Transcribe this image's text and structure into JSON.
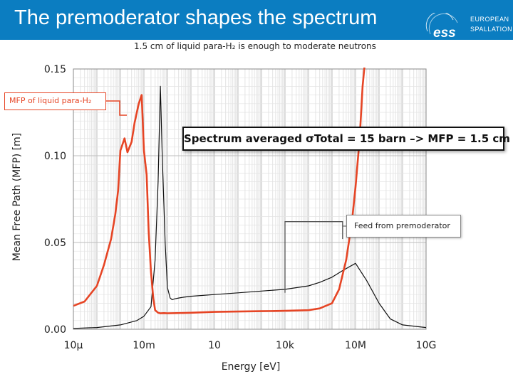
{
  "slide": {
    "title": "The premoderator shapes the spectrum",
    "subtitle": "1.5 cm of liquid para-H₂ is enough to moderate neutrons",
    "logo_text": [
      "EUROPEAN",
      "SPALLATION"
    ],
    "header_color": "#0b7dc1"
  },
  "annotations": {
    "mfp_label": "MFP of liquid para-H₂",
    "spectrum_note": "Spectrum averaged σTotal = 15 barn –> MFP = 1.5 cm",
    "feed_label": "Feed from premoderator"
  },
  "chart_data": {
    "type": "line",
    "title": "",
    "xlabel": "Energy [eV]",
    "ylabel": "Mean Free Path (MFP) [m]",
    "x_scale": "log",
    "xlim": [
      1e-05,
      10000000000.0
    ],
    "ylim": [
      0,
      0.15
    ],
    "x_tick_labels": [
      "10μ",
      "10m",
      "10",
      "10k",
      "10M",
      "10G"
    ],
    "y_tick_labels": [
      "0.00",
      "0.05",
      "0.10",
      "0.15"
    ],
    "grid": true,
    "series": [
      {
        "name": "MFP of liquid para-H₂",
        "color": "#e64525",
        "x": [
          1e-05,
          3e-05,
          0.0001,
          0.0002,
          0.0004,
          0.0006,
          0.0008,
          0.001,
          0.0015,
          0.002,
          0.003,
          0.004,
          0.006,
          0.008,
          0.01,
          0.013,
          0.016,
          0.02,
          0.025,
          0.03,
          0.04,
          0.05,
          0.07,
          0.1,
          1,
          10,
          100,
          1000,
          10000.0,
          100000.0,
          300000.0,
          1000000.0,
          2000000.0,
          4000000.0,
          7000000.0,
          10000000.0,
          15000000.0,
          20000000.0,
          30000000.0,
          40000000.0
        ],
        "y": [
          0.0135,
          0.016,
          0.025,
          0.037,
          0.052,
          0.066,
          0.08,
          0.103,
          0.11,
          0.102,
          0.108,
          0.119,
          0.13,
          0.135,
          0.103,
          0.089,
          0.056,
          0.033,
          0.018,
          0.011,
          0.0095,
          0.0092,
          0.0093,
          0.0092,
          0.0095,
          0.01,
          0.0102,
          0.0104,
          0.0106,
          0.011,
          0.012,
          0.015,
          0.023,
          0.04,
          0.062,
          0.082,
          0.11,
          0.14,
          0.165,
          0.2
        ]
      },
      {
        "name": "",
        "color": "#111111",
        "x": [
          1e-05,
          0.0001,
          0.001,
          0.005,
          0.01,
          0.02,
          0.03,
          0.04,
          0.05,
          0.06,
          0.08,
          0.1,
          0.13,
          0.16,
          0.2,
          0.3,
          0.5,
          1,
          10,
          100,
          1000,
          10000.0,
          100000.0,
          300000.0,
          1000000.0,
          3000000.0,
          10000000.0,
          30000000.0,
          100000000.0,
          300000000.0,
          1000000000.0,
          10000000000.0
        ],
        "y": [
          0.0005,
          0.001,
          0.0025,
          0.005,
          0.0075,
          0.013,
          0.04,
          0.085,
          0.14,
          0.1,
          0.05,
          0.024,
          0.018,
          0.017,
          0.0175,
          0.018,
          0.0185,
          0.019,
          0.02,
          0.021,
          0.022,
          0.023,
          0.025,
          0.027,
          0.03,
          0.034,
          0.038,
          0.028,
          0.015,
          0.006,
          0.0025,
          0.001
        ]
      }
    ],
    "guide_lines": {
      "color": "#555555",
      "feed_step": {
        "x": [
          10000.0,
          10000.0,
          2800000.0,
          2800000.0
        ],
        "y": [
          0.021,
          0.062,
          0.062,
          0.052
        ]
      }
    }
  }
}
